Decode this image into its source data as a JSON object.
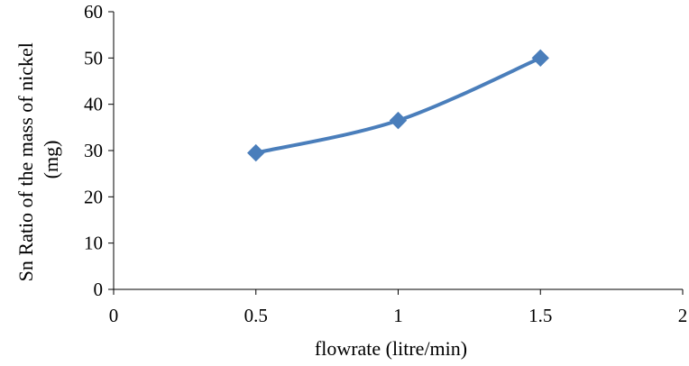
{
  "chart_data": {
    "type": "line",
    "title": "",
    "xlabel": "flowrate (litre/min)",
    "ylabel_lines": [
      "Sn Ratio of the mass of nickel",
      "(mg)"
    ],
    "xlim": [
      0,
      2
    ],
    "ylim": [
      0,
      60
    ],
    "x_ticks": [
      0,
      0.5,
      1,
      1.5,
      2
    ],
    "x_tick_labels": [
      "0",
      "0.5",
      "1",
      "1.5",
      "2"
    ],
    "y_ticks": [
      0,
      10,
      20,
      30,
      40,
      50,
      60
    ],
    "y_tick_labels": [
      "0",
      "10",
      "20",
      "30",
      "40",
      "50",
      "60"
    ],
    "grid": false,
    "legend": "none",
    "series": [
      {
        "x": [
          0.5,
          1,
          1.5
        ],
        "y": [
          29.5,
          36.5,
          50
        ],
        "color": "#4a7ebb",
        "marker": "diamond",
        "smooth": true
      }
    ]
  }
}
